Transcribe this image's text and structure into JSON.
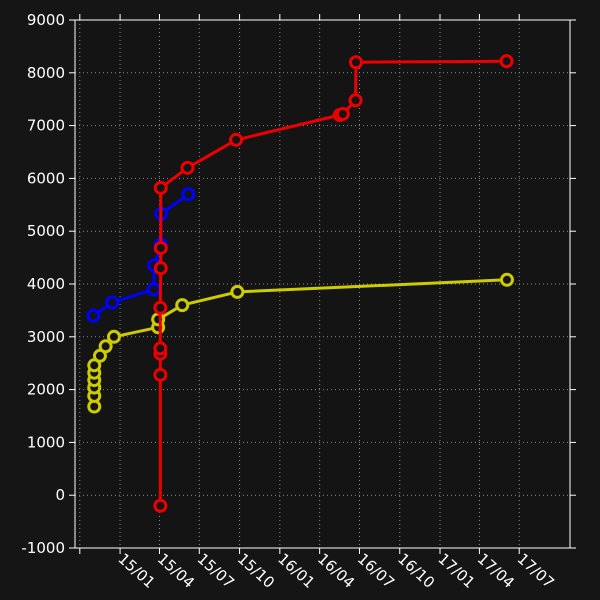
{
  "chart_data": {
    "type": "line",
    "title": "",
    "xlabel": "",
    "ylabel": "",
    "background": "#141414",
    "grid": true,
    "x_axis": {
      "type": "date",
      "range": [
        "2014-09-20",
        "2017-10-25"
      ],
      "ticks": [
        {
          "date": "2014-10-01",
          "label": ""
        },
        {
          "date": "2015-01-01",
          "label": "15/01"
        },
        {
          "date": "2015-04-01",
          "label": "15/04"
        },
        {
          "date": "2015-07-01",
          "label": "15/07"
        },
        {
          "date": "2015-10-01",
          "label": "15/10"
        },
        {
          "date": "2016-01-01",
          "label": "16/01"
        },
        {
          "date": "2016-04-01",
          "label": "16/04"
        },
        {
          "date": "2016-07-01",
          "label": "16/07"
        },
        {
          "date": "2016-10-01",
          "label": "16/10"
        },
        {
          "date": "2017-01-01",
          "label": "17/01"
        },
        {
          "date": "2017-04-01",
          "label": "17/04"
        },
        {
          "date": "2017-07-01",
          "label": "17/07"
        }
      ]
    },
    "y_axis": {
      "range": [
        -1000,
        9000
      ],
      "ticks": [
        -1000,
        0,
        1000,
        2000,
        3000,
        4000,
        5000,
        6000,
        7000,
        8000,
        9000
      ],
      "tick_labels": [
        "-1000",
        "0",
        "1000",
        "2000",
        "3000",
        "4000",
        "5000",
        "6000",
        "7000",
        "8000",
        "9000"
      ]
    },
    "series": [
      {
        "color": "#0000ff",
        "points": [
          {
            "x": "2014-11-01",
            "y": 3400
          },
          {
            "x": "2014-12-14",
            "y": 3650
          },
          {
            "x": "2015-03-19",
            "y": 3900
          },
          {
            "x": "2015-03-20",
            "y": 4350
          },
          {
            "x": "2015-04-04",
            "y": 4750
          },
          {
            "x": "2015-04-05",
            "y": 5330
          },
          {
            "x": "2015-06-06",
            "y": 5700
          }
        ]
      },
      {
        "color": "#cccc00",
        "points": [
          {
            "x": "2014-11-03",
            "y": 1680
          },
          {
            "x": "2014-11-03",
            "y": 1880
          },
          {
            "x": "2014-11-03",
            "y": 2040
          },
          {
            "x": "2014-11-03",
            "y": 2180
          },
          {
            "x": "2014-11-03",
            "y": 2320
          },
          {
            "x": "2014-11-03",
            "y": 2460
          },
          {
            "x": "2014-11-16",
            "y": 2640
          },
          {
            "x": "2014-11-29",
            "y": 2820
          },
          {
            "x": "2014-12-18",
            "y": 3000
          },
          {
            "x": "2015-03-29",
            "y": 3180
          },
          {
            "x": "2015-03-29",
            "y": 3330
          },
          {
            "x": "2015-05-23",
            "y": 3600
          },
          {
            "x": "2015-09-26",
            "y": 3850
          },
          {
            "x": "2017-06-03",
            "y": 4080
          }
        ]
      },
      {
        "color": "#ee0000",
        "points": [
          {
            "x": "2015-04-03",
            "y": -200
          },
          {
            "x": "2015-04-03",
            "y": 2280
          },
          {
            "x": "2015-04-03",
            "y": 2680
          },
          {
            "x": "2015-04-03",
            "y": 2780
          },
          {
            "x": "2015-04-03",
            "y": 3550
          },
          {
            "x": "2015-04-04",
            "y": 4300
          },
          {
            "x": "2015-04-04",
            "y": 4680
          },
          {
            "x": "2015-04-04",
            "y": 5820
          },
          {
            "x": "2015-06-04",
            "y": 6200
          },
          {
            "x": "2015-09-23",
            "y": 6730
          },
          {
            "x": "2016-05-17",
            "y": 7200
          },
          {
            "x": "2016-05-24",
            "y": 7220
          },
          {
            "x": "2016-06-22",
            "y": 7480
          },
          {
            "x": "2016-06-23",
            "y": 8200
          },
          {
            "x": "2017-06-02",
            "y": 8220
          }
        ]
      }
    ]
  }
}
